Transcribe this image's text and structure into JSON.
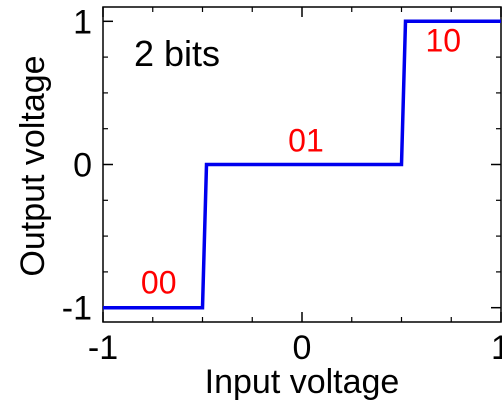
{
  "chart_data": {
    "type": "line",
    "title": "",
    "annotation": "2 bits",
    "xlabel": "Input voltage",
    "ylabel": "Output voltage",
    "xlim": [
      -1,
      1
    ],
    "ylim": [
      -1.1,
      1.1
    ],
    "xticks": [
      {
        "value": -1,
        "label": "-1"
      },
      {
        "value": 0,
        "label": "0"
      },
      {
        "value": 1,
        "label": "1"
      }
    ],
    "yticks": [
      {
        "value": -1,
        "label": "-1"
      },
      {
        "value": 0,
        "label": "0"
      },
      {
        "value": 1,
        "label": "1"
      }
    ],
    "minor_xticks": [
      -0.75,
      -0.5,
      -0.25,
      0.25,
      0.5,
      0.75
    ],
    "minor_yticks": [
      -0.75,
      -0.5,
      -0.25,
      0.25,
      0.5,
      0.75
    ],
    "grid": false,
    "series": [
      {
        "color": "#0000ee",
        "x": [
          -1,
          -0.5,
          -0.48,
          0.5,
          0.52,
          1
        ],
        "y": [
          -1,
          -1,
          0,
          0,
          1,
          1
        ]
      }
    ],
    "code_labels": [
      {
        "text": "00",
        "x": -0.72,
        "y": -0.9
      },
      {
        "text": "01",
        "x": 0.02,
        "y": 0.09
      },
      {
        "text": "10",
        "x": 0.71,
        "y": 0.79
      }
    ],
    "colors": {
      "line": "#0000ee",
      "labels": "#ff0000",
      "axes": "#000000"
    }
  }
}
